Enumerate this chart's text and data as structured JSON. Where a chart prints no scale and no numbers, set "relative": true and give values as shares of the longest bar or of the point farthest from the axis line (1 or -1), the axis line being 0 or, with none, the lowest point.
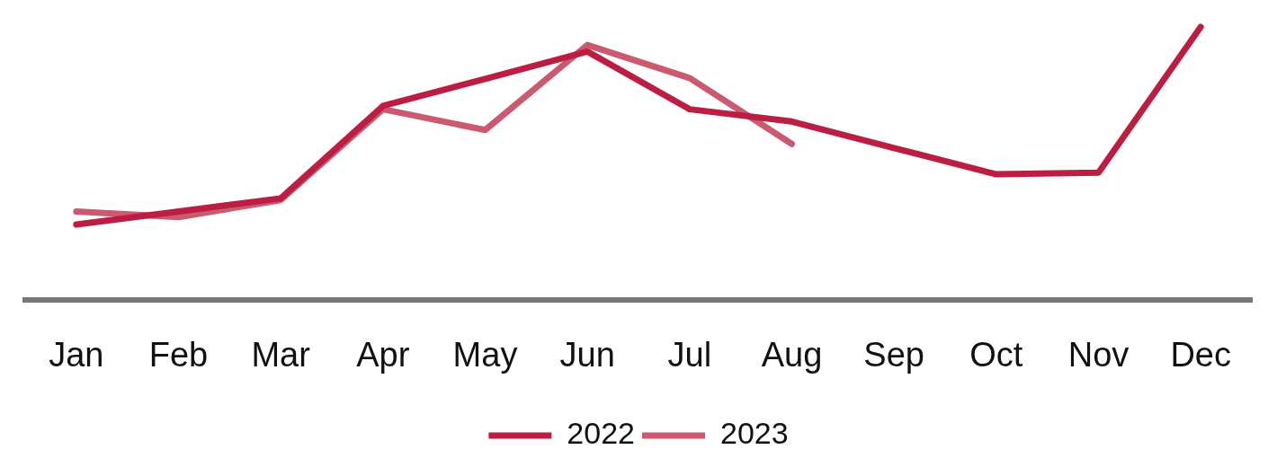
{
  "chart_data": {
    "type": "line",
    "relative": true,
    "legend": "bottom",
    "marker": "none",
    "categories": [
      "Jan",
      "Feb",
      "Mar",
      "Apr",
      "May",
      "Jun",
      "Jul",
      "Aug",
      "Sep",
      "Oct",
      "Nov",
      "Dec"
    ],
    "series": [
      {
        "name": "2022",
        "color": "#bc1d42",
        "values": [
          0.277,
          0.325,
          0.373,
          0.711,
          0.81,
          0.91,
          0.699,
          0.654,
          0.557,
          0.461,
          0.467,
          1
        ]
      },
      {
        "name": "2023",
        "color": "#c95a70",
        "values": [
          0.325,
          0.304,
          0.367,
          0.699,
          0.623,
          0.934,
          0.813,
          0.572,
          null,
          null,
          null,
          null
        ]
      }
    ]
  }
}
